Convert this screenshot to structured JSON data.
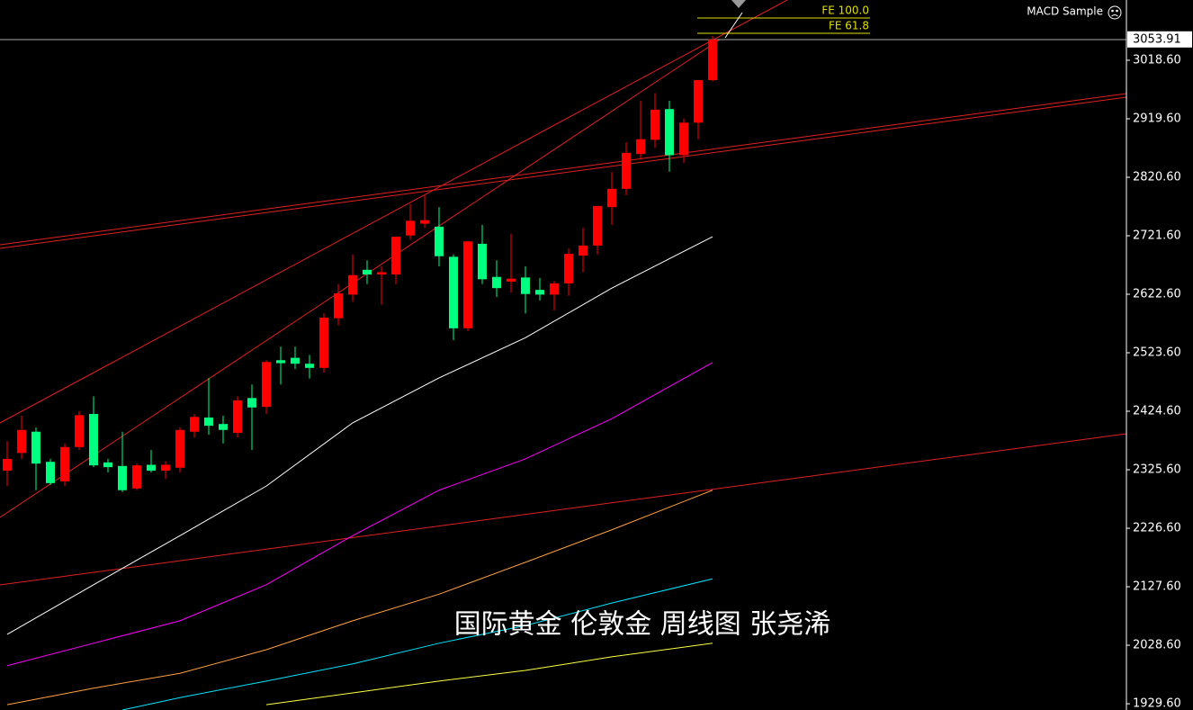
{
  "chart_data": {
    "type": "candlestick",
    "indicator_label": "MACD Sample",
    "fe_labels": [
      "FE 100.0",
      "FE 61.8"
    ],
    "watermark": "国际黄金 伦敦金 周线图 张尧浠",
    "last_price": {
      "value": 3053.91,
      "label": "3053.91"
    },
    "up_color": "#ff0000",
    "down_color": "#00ff80",
    "ylim": [
      1919.0,
      3120.6
    ],
    "yticks": [
      {
        "value": 3018.6,
        "label": "3018.60"
      },
      {
        "value": 2919.6,
        "label": "2919.60"
      },
      {
        "value": 2820.6,
        "label": "2820.60"
      },
      {
        "value": 2721.6,
        "label": "2721.60"
      },
      {
        "value": 2622.6,
        "label": "2622.60"
      },
      {
        "value": 2523.6,
        "label": "2523.60"
      },
      {
        "value": 2424.6,
        "label": "2424.60"
      },
      {
        "value": 2325.6,
        "label": "2325.60"
      },
      {
        "value": 2226.6,
        "label": "2226.60"
      },
      {
        "value": 2127.6,
        "label": "2127.60"
      },
      {
        "value": 2028.6,
        "label": "2028.60"
      },
      {
        "value": 1929.6,
        "label": "1929.60"
      }
    ],
    "open": [
      2324,
      2354,
      2390,
      2339,
      2306,
      2364,
      2420,
      2338,
      2332,
      2294,
      2334,
      2324,
      2329,
      2390,
      2414,
      2403,
      2388,
      2447,
      2432,
      2511,
      2515,
      2505,
      2498,
      2582,
      2622,
      2664,
      2656,
      2656,
      2722,
      2742,
      2737,
      2686,
      2565,
      2708,
      2652,
      2644,
      2651,
      2630,
      2622,
      2641,
      2688,
      2705,
      2770,
      2801,
      2860,
      2884,
      2936,
      2858,
      2913,
      2985
    ],
    "high": [
      2374,
      2417,
      2397,
      2344,
      2370,
      2425,
      2450,
      2344,
      2390,
      2336,
      2359,
      2340,
      2397,
      2420,
      2481,
      2417,
      2450,
      2470,
      2511,
      2534,
      2534,
      2520,
      2590,
      2640,
      2690,
      2680,
      2670,
      2717,
      2775,
      2790,
      2770,
      2690,
      2712,
      2740,
      2680,
      2725,
      2670,
      2650,
      2645,
      2700,
      2735,
      2772,
      2830,
      2880,
      2950,
      2963,
      2950,
      2920,
      2985,
      3060
    ],
    "low": [
      2298,
      2344,
      2291,
      2300,
      2298,
      2359,
      2330,
      2321,
      2288,
      2291,
      2321,
      2310,
      2321,
      2380,
      2385,
      2370,
      2380,
      2359,
      2420,
      2470,
      2496,
      2480,
      2490,
      2570,
      2610,
      2640,
      2605,
      2640,
      2715,
      2735,
      2670,
      2545,
      2560,
      2640,
      2618,
      2625,
      2590,
      2612,
      2595,
      2620,
      2660,
      2690,
      2740,
      2790,
      2850,
      2870,
      2830,
      2845,
      2885,
      2983
    ],
    "close": [
      2344,
      2393,
      2336,
      2303,
      2364,
      2418,
      2333,
      2330,
      2291,
      2333,
      2324,
      2334,
      2393,
      2415,
      2400,
      2393,
      2443,
      2431,
      2508,
      2506,
      2505,
      2498,
      2583,
      2624,
      2655,
      2656,
      2660,
      2720,
      2747,
      2748,
      2687,
      2565,
      2712,
      2648,
      2633,
      2649,
      2623,
      2622,
      2641,
      2691,
      2705,
      2772,
      2801,
      2862,
      2885,
      2935,
      2858,
      2913,
      2985,
      3053.91
    ],
    "lines": [
      {
        "color": "#ffffff",
        "x": [
          0,
          6,
          12,
          18,
          24,
          30,
          36,
          42,
          49
        ],
        "values": [
          2047,
          2131,
          2214,
          2298,
          2405,
          2481,
          2549,
          2633,
          2720
        ]
      },
      {
        "color": "#ff00ff",
        "x": [
          0,
          6,
          12,
          18,
          24,
          30,
          36,
          42,
          49
        ],
        "values": [
          1994,
          2032,
          2070,
          2131,
          2214,
          2291,
          2344,
          2412,
          2507
        ]
      },
      {
        "color": "#ffa040",
        "x": [
          0,
          6,
          12,
          18,
          24,
          30,
          36,
          42,
          49
        ],
        "values": [
          1928,
          1956,
          1981,
          2021,
          2070,
          2115,
          2169,
          2224,
          2291
        ]
      },
      {
        "color": "#00e5ff",
        "x": [
          8,
          12,
          18,
          24,
          30,
          36,
          42,
          49
        ],
        "values": [
          1919,
          1940,
          1968,
          1997,
          2032,
          2062,
          2100,
          2141
        ]
      },
      {
        "color": "#ffff40",
        "x": [
          18,
          24,
          30,
          36,
          42,
          49
        ],
        "values": [
          1928,
          1948,
          1968,
          1986,
          2009,
          2032
        ]
      }
    ]
  }
}
